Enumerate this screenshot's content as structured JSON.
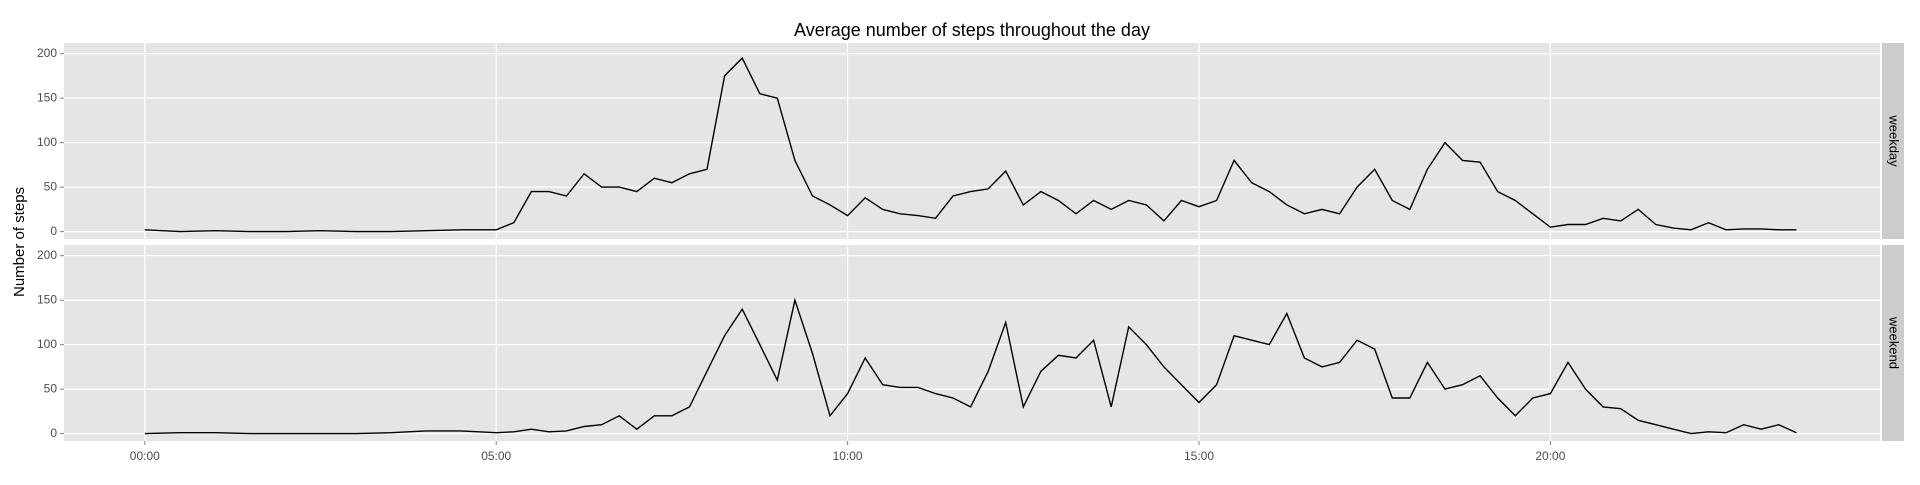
{
  "chart_data": {
    "type": "line",
    "facet": true,
    "title": "Average number of steps throughout the day",
    "ylabel": "Number of steps",
    "x": [
      0,
      0.5,
      1,
      1.5,
      2,
      2.5,
      3,
      3.5,
      4,
      4.5,
      5,
      5.25,
      5.5,
      5.75,
      6,
      6.25,
      6.5,
      6.75,
      7,
      7.25,
      7.5,
      7.75,
      8,
      8.25,
      8.5,
      8.75,
      9,
      9.25,
      9.5,
      9.75,
      10,
      10.25,
      10.5,
      10.75,
      11,
      11.25,
      11.5,
      11.75,
      12,
      12.25,
      12.5,
      12.75,
      13,
      13.25,
      13.5,
      13.75,
      14,
      14.25,
      14.5,
      14.75,
      15,
      15.25,
      15.5,
      15.75,
      16,
      16.25,
      16.5,
      16.75,
      17,
      17.25,
      17.5,
      17.75,
      18,
      18.25,
      18.5,
      18.75,
      19,
      19.25,
      19.5,
      19.75,
      20,
      20.25,
      20.5,
      20.75,
      21,
      21.25,
      21.5,
      21.75,
      22,
      22.25,
      22.5,
      22.75,
      23,
      23.25,
      23.5
    ],
    "series": [
      {
        "name": "weekday",
        "color": "#000000",
        "values": [
          2,
          0,
          1,
          0,
          0,
          1,
          0,
          0,
          1,
          2,
          2,
          10,
          45,
          45,
          40,
          65,
          50,
          50,
          45,
          60,
          55,
          65,
          70,
          175,
          195,
          155,
          150,
          80,
          40,
          30,
          18,
          38,
          25,
          20,
          18,
          15,
          40,
          45,
          48,
          68,
          30,
          45,
          35,
          20,
          35,
          25,
          35,
          30,
          12,
          35,
          28,
          35,
          80,
          55,
          45,
          30,
          20,
          25,
          20,
          50,
          70,
          35,
          25,
          70,
          100,
          80,
          78,
          45,
          35,
          20,
          5,
          8,
          8,
          15,
          12,
          25,
          8,
          4,
          2,
          10,
          2,
          3,
          3,
          2,
          2
        ]
      },
      {
        "name": "weekend",
        "color": "#000000",
        "values": [
          0,
          1,
          1,
          0,
          0,
          0,
          0,
          1,
          3,
          3,
          1,
          2,
          5,
          2,
          3,
          8,
          10,
          20,
          5,
          20,
          20,
          30,
          70,
          110,
          140,
          100,
          60,
          150,
          90,
          20,
          45,
          85,
          55,
          52,
          52,
          45,
          40,
          30,
          70,
          125,
          30,
          70,
          88,
          85,
          105,
          30,
          120,
          100,
          75,
          55,
          35,
          55,
          110,
          105,
          100,
          135,
          85,
          75,
          80,
          105,
          95,
          40,
          40,
          80,
          50,
          55,
          65,
          40,
          20,
          40,
          45,
          80,
          50,
          30,
          28,
          15,
          10,
          5,
          0,
          2,
          1,
          10,
          5,
          10,
          1
        ]
      }
    ],
    "xlim": [
      -1.15,
      24.69
    ],
    "xticks": [
      {
        "value": 0,
        "label": "00:00"
      },
      {
        "value": 5,
        "label": "05:00"
      },
      {
        "value": 10,
        "label": "10:00"
      },
      {
        "value": 15,
        "label": "15:00"
      },
      {
        "value": 20,
        "label": "20:00"
      }
    ],
    "ylim": [
      -8.3,
      212
    ],
    "yticks": [
      0,
      50,
      100,
      150,
      200
    ],
    "grid": true
  }
}
